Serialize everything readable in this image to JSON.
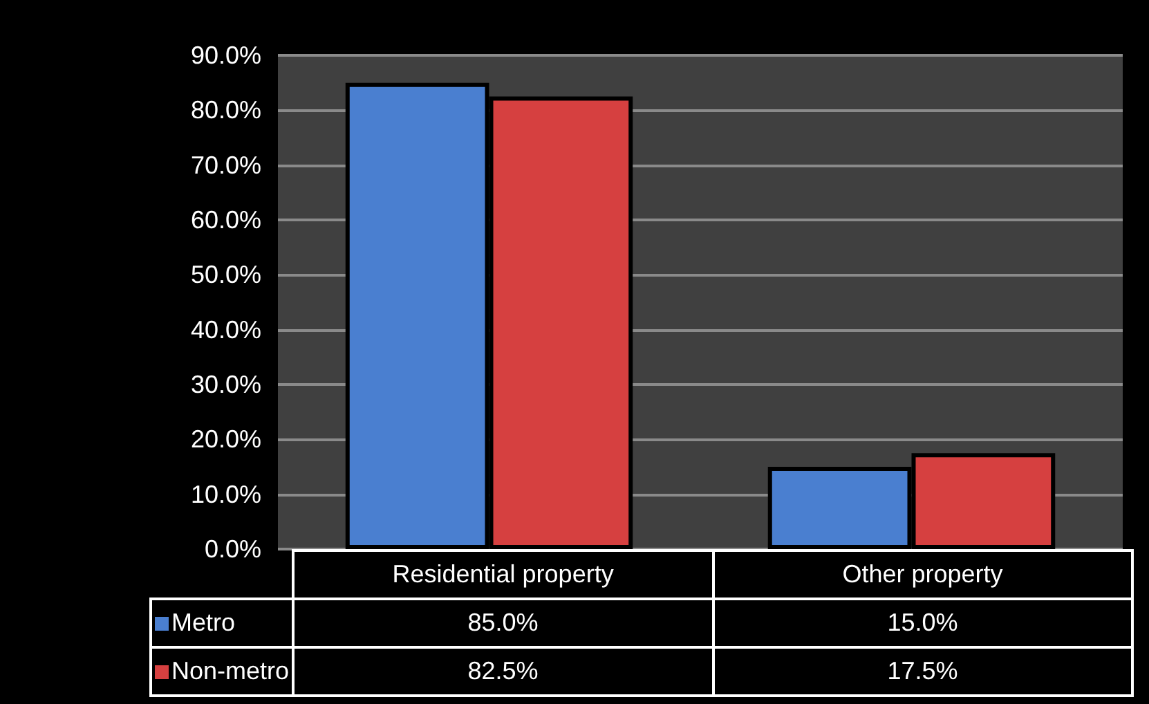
{
  "chart_data": {
    "type": "bar",
    "categories": [
      "Residential property",
      "Other property"
    ],
    "series": [
      {
        "name": "Metro",
        "color": "#4a7fd0",
        "values": [
          85.0,
          15.0
        ],
        "value_labels": [
          "85.0%",
          "15.0%"
        ]
      },
      {
        "name": "Non-metro",
        "color": "#d64040",
        "values": [
          82.5,
          17.5
        ],
        "value_labels": [
          "82.5%",
          "17.5%"
        ]
      }
    ],
    "ylim": [
      0,
      90
    ],
    "yticks": [
      {
        "value": 0,
        "label": "0.0%"
      },
      {
        "value": 10,
        "label": "10.0%"
      },
      {
        "value": 20,
        "label": "20.0%"
      },
      {
        "value": 30,
        "label": "30.0%"
      },
      {
        "value": 40,
        "label": "40.0%"
      },
      {
        "value": 50,
        "label": "50.0%"
      },
      {
        "value": 60,
        "label": "60.0%"
      },
      {
        "value": 70,
        "label": "70.0%"
      },
      {
        "value": 80,
        "label": "80.0%"
      },
      {
        "value": 90,
        "label": "90.0%"
      }
    ],
    "grid": "y",
    "legend": "bottom"
  }
}
